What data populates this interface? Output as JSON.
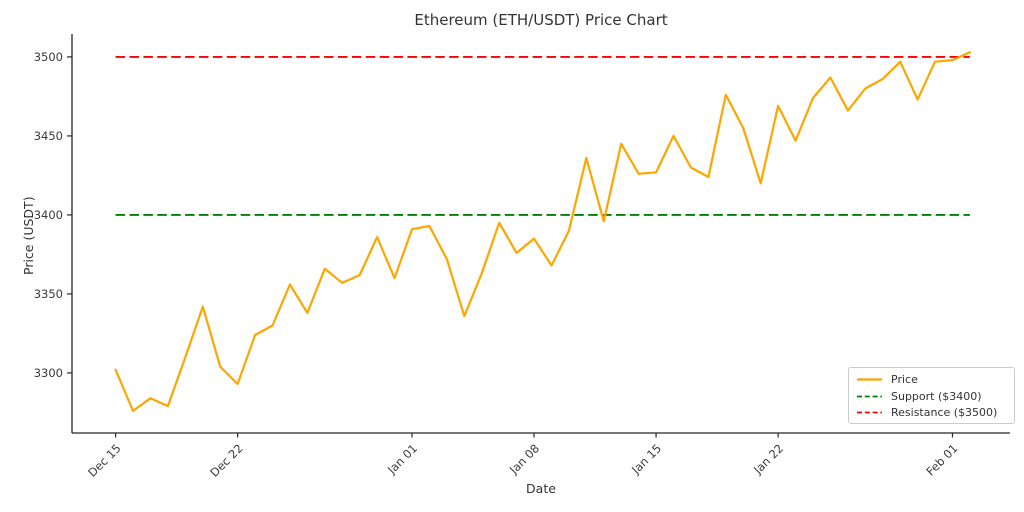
{
  "chart_data": {
    "type": "line",
    "title": "Ethereum (ETH/USDT) Price Chart",
    "xlabel": "Date",
    "ylabel": "Price (USDT)",
    "grid": false,
    "legend_position": "lower right",
    "categories": [
      "Dec 15",
      "Dec 16",
      "Dec 17",
      "Dec 18",
      "Dec 19",
      "Dec 20",
      "Dec 21",
      "Dec 22",
      "Dec 23",
      "Dec 24",
      "Dec 25",
      "Dec 26",
      "Dec 27",
      "Dec 28",
      "Dec 29",
      "Dec 30",
      "Dec 31",
      "Jan 01",
      "Jan 02",
      "Jan 03",
      "Jan 04",
      "Jan 05",
      "Jan 06",
      "Jan 07",
      "Jan 08",
      "Jan 09",
      "Jan 10",
      "Jan 11",
      "Jan 12",
      "Jan 13",
      "Jan 14",
      "Jan 15",
      "Jan 16",
      "Jan 17",
      "Jan 18",
      "Jan 19",
      "Jan 20",
      "Jan 21",
      "Jan 22",
      "Jan 23",
      "Jan 24",
      "Jan 25",
      "Jan 26",
      "Jan 27",
      "Jan 28",
      "Jan 29",
      "Jan 30",
      "Jan 31",
      "Feb 01",
      "Feb 02"
    ],
    "series": [
      {
        "name": "Price",
        "color": "#FFA500",
        "line_style": "solid",
        "values": [
          3302,
          3276,
          3284,
          3279,
          3310,
          3342,
          3304,
          3293,
          3324,
          3330,
          3356,
          3338,
          3366,
          3357,
          3362,
          3386,
          3360,
          3391,
          3393,
          3372,
          3336,
          3363,
          3395,
          3376,
          3385,
          3368,
          3390,
          3436,
          3396,
          3445,
          3426,
          3427,
          3450,
          3430,
          3424,
          3476,
          3455,
          3420,
          3469,
          3447,
          3474,
          3487,
          3466,
          3480,
          3486,
          3497,
          3473,
          3497,
          3498,
          3503
        ]
      }
    ],
    "reference_lines": [
      {
        "name": "Support ($3400)",
        "value": 3400,
        "color": "#008000",
        "line_style": "dashed"
      },
      {
        "name": "Resistance ($3500)",
        "value": 3500,
        "color": "#FF0000",
        "line_style": "dashed"
      }
    ],
    "x_ticks": [
      {
        "index": 0,
        "label": "Dec 15"
      },
      {
        "index": 7,
        "label": "Dec 22"
      },
      {
        "index": 17,
        "label": "Jan 01"
      },
      {
        "index": 24,
        "label": "Jan 08"
      },
      {
        "index": 31,
        "label": "Jan 15"
      },
      {
        "index": 38,
        "label": "Jan 22"
      },
      {
        "index": 48,
        "label": "Feb 01"
      }
    ],
    "y_ticks": [
      3300,
      3350,
      3400,
      3450,
      3500
    ],
    "ylim": [
      3262,
      3514.5
    ],
    "xlim_days": [
      -2.5,
      51.3
    ]
  },
  "style_colors": {
    "axis": "#262626",
    "tick_text": "#3b3b3b",
    "legend_border": "#cccccc"
  }
}
